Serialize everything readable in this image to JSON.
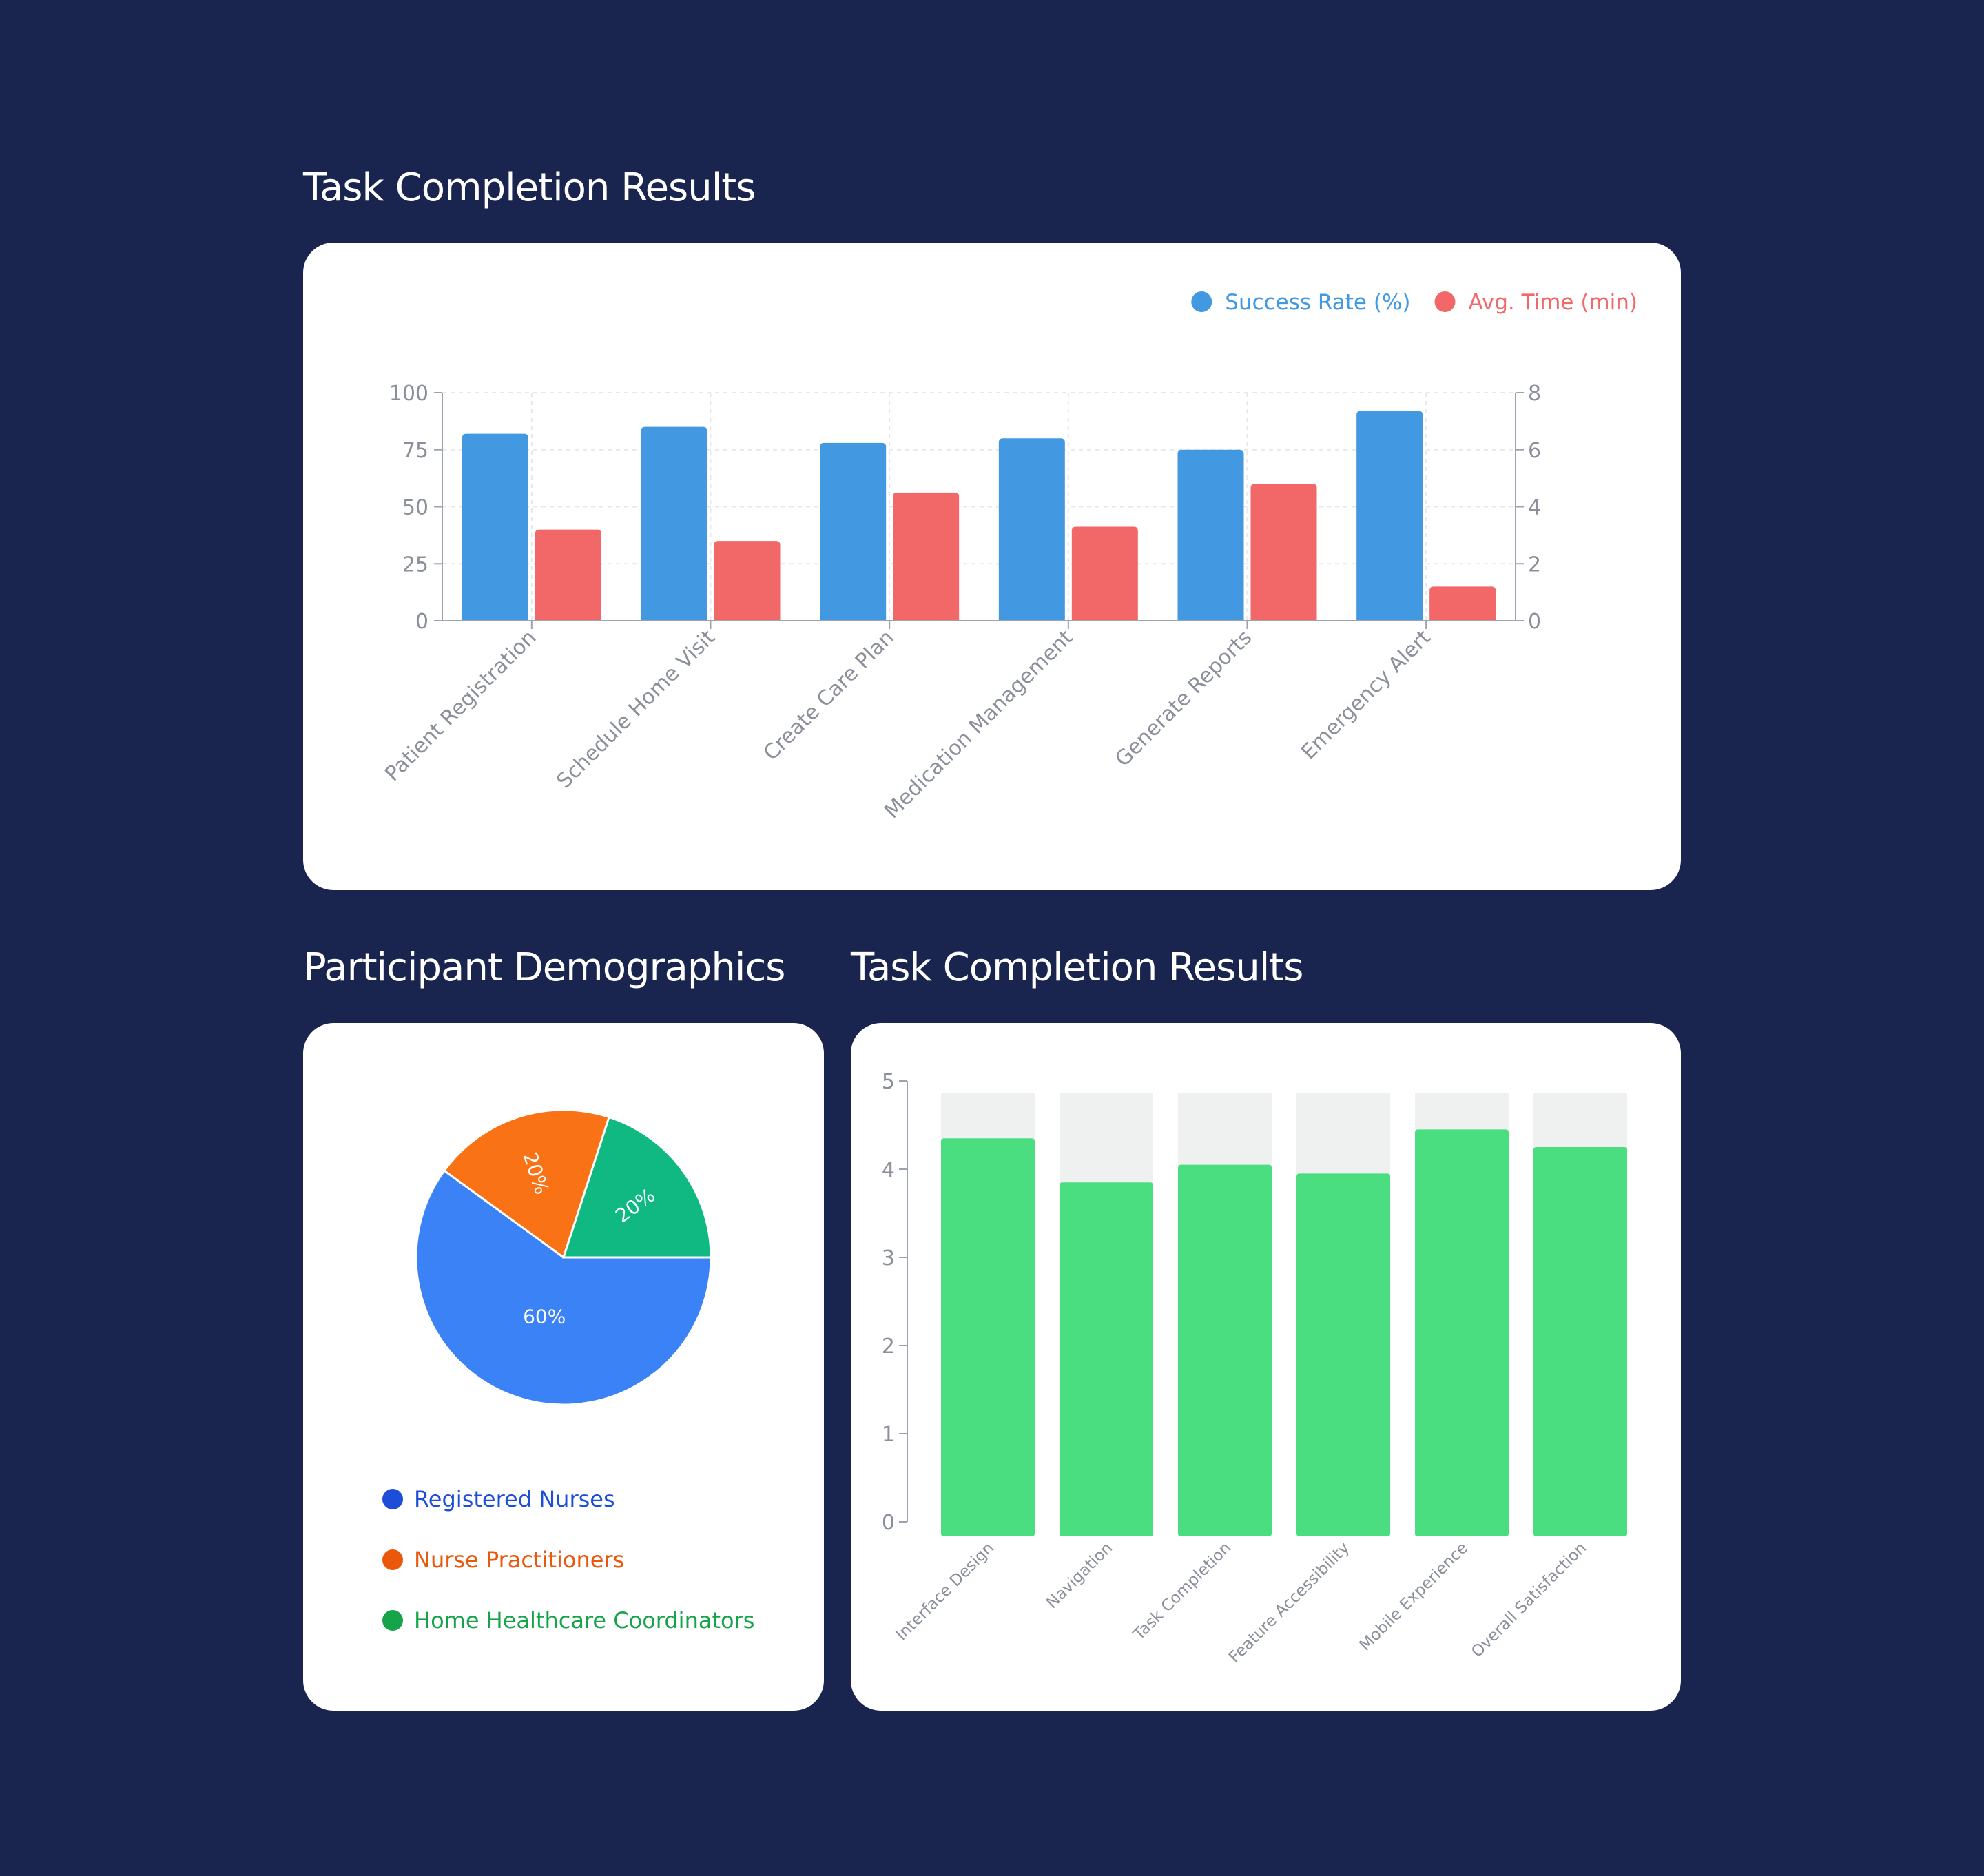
{
  "titles": {
    "top_chart": "Task Completion Results",
    "demographics": "Participant Demographics",
    "ratings": "Task Completion Results"
  },
  "chart_data": [
    {
      "type": "bar",
      "title": "Task Completion Results",
      "categories": [
        "Patient Registration",
        "Schedule Home Visit",
        "Create Care Plan",
        "Medication Management",
        "Generate Reports",
        "Emergency Alert"
      ],
      "series": [
        {
          "name": "Success Rate (%)",
          "axis": "left",
          "color": "#4399e1",
          "values": [
            82,
            85,
            78,
            80,
            75,
            92
          ]
        },
        {
          "name": "Avg. Time (min)",
          "axis": "right",
          "color": "#f26868",
          "values": [
            3.2,
            2.8,
            4.5,
            3.3,
            4.8,
            1.2
          ]
        }
      ],
      "y_left": {
        "range": [
          0,
          100
        ],
        "ticks": [
          "0",
          "25",
          "50",
          "75",
          "100"
        ]
      },
      "y_right": {
        "range": [
          0,
          8
        ],
        "ticks": [
          "0",
          "2",
          "4",
          "6",
          "8"
        ]
      },
      "legend_position": "top-right",
      "grid": true
    },
    {
      "type": "pie",
      "title": "Participant Demographics",
      "slices": [
        {
          "label": "Registered Nurses",
          "value": 60,
          "display": "60%",
          "color": "#3b82f6",
          "legend_color": "#1d4ed8"
        },
        {
          "label": "Nurse Practitioners",
          "value": 20,
          "display": "20%",
          "color": "#f97316",
          "legend_color": "#ea580c"
        },
        {
          "label": "Home Healthcare Coordinators",
          "value": 20,
          "display": "20%",
          "color": "#10b981",
          "legend_color": "#16a34a"
        }
      ],
      "legend_position": "bottom"
    },
    {
      "type": "bar",
      "title": "Task Completion Results",
      "categories": [
        "Interface Design",
        "Navigation",
        "Task Completion",
        "Feature Accessibility",
        "Mobile Experience",
        "Overall Satisfaction"
      ],
      "values": [
        4.35,
        3.85,
        4.05,
        3.95,
        4.45,
        4.25
      ],
      "max_background": 5,
      "color": "#4ade80",
      "background_color": "#eff0f0",
      "ylim": [
        0,
        5
      ],
      "ticks": [
        "0",
        "1",
        "2",
        "3",
        "4",
        "5"
      ]
    }
  ]
}
